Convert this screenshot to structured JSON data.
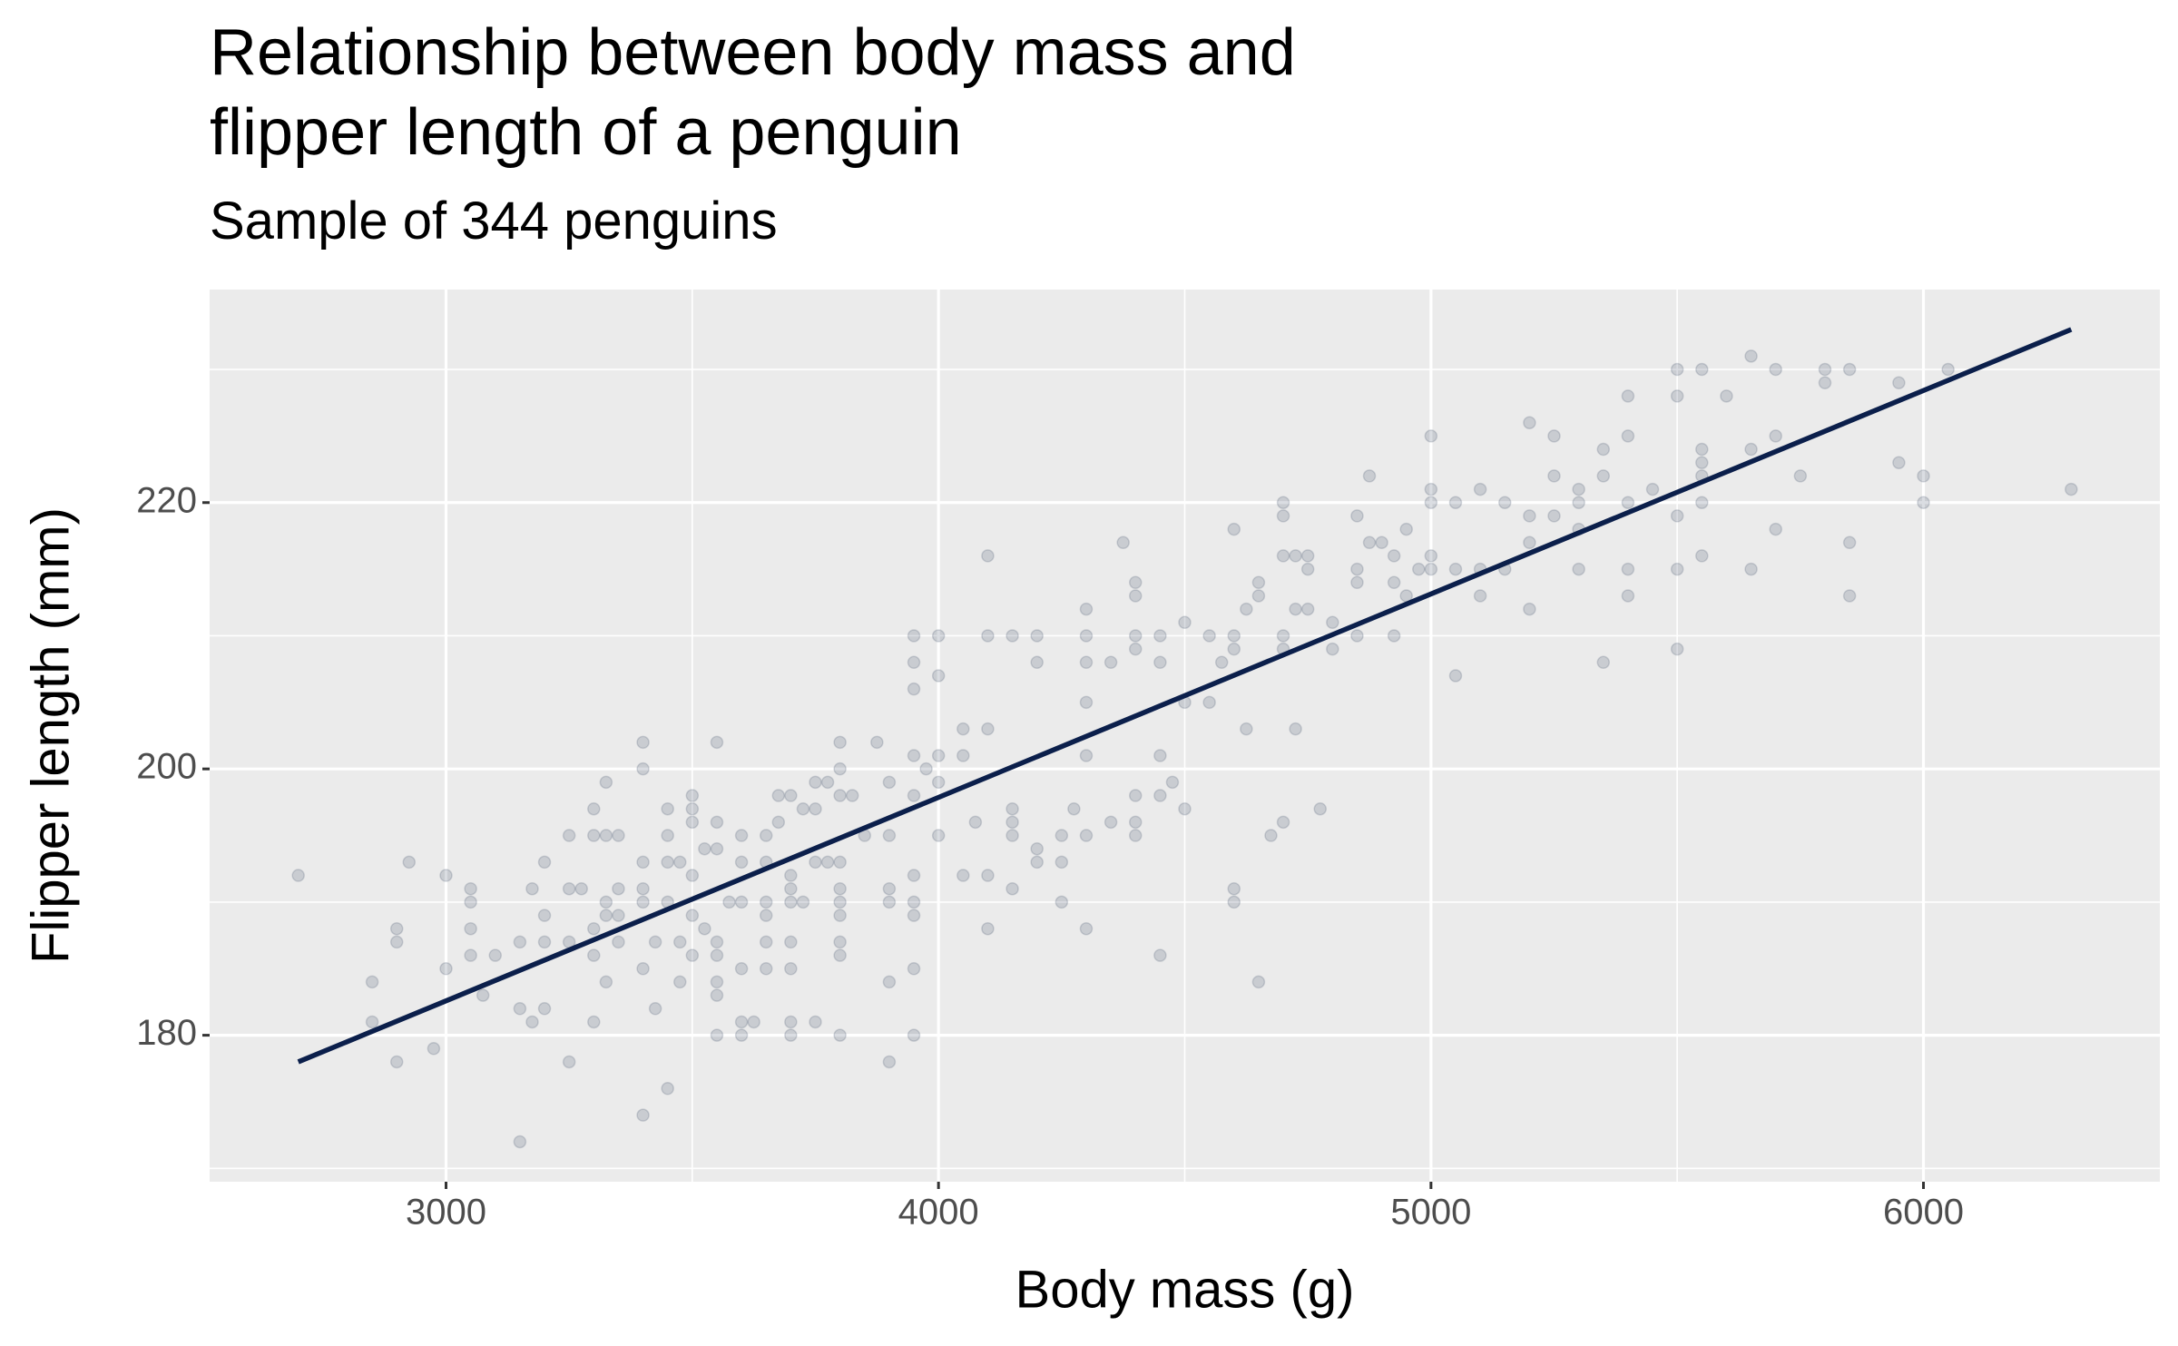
{
  "chart_data": {
    "type": "scatter",
    "title": "Relationship between body mass and\nflipper length of a penguin",
    "subtitle": "Sample of 344 penguins",
    "x_label": "Body mass (g)",
    "y_label": "Flipper length (mm)",
    "xlim": [
      2520,
      6480
    ],
    "ylim": [
      169,
      236
    ],
    "xticks": [
      3000,
      4000,
      5000,
      6000
    ],
    "yticks": [
      180,
      200,
      220
    ],
    "x_minor_grid": [
      3500,
      4500,
      5500
    ],
    "y_minor_grid": [
      170,
      190,
      210,
      230
    ],
    "grid": true,
    "point_color": "#1b2a4a",
    "point_opacity": 0.16,
    "line_color": "#0b1f4b",
    "fit": {
      "x": [
        2700,
        6300
      ],
      "y": [
        178,
        233
      ]
    },
    "x": [
      2700,
      2850,
      2850,
      2900,
      2900,
      2900,
      2925,
      2975,
      3000,
      3000,
      3050,
      3050,
      3050,
      3050,
      3075,
      3100,
      3150,
      3150,
      3150,
      3175,
      3175,
      3200,
      3200,
      3200,
      3200,
      3250,
      3250,
      3250,
      3250,
      3275,
      3300,
      3300,
      3300,
      3300,
      3300,
      3325,
      3325,
      3325,
      3325,
      3325,
      3350,
      3350,
      3350,
      3350,
      3400,
      3400,
      3400,
      3400,
      3400,
      3400,
      3400,
      3425,
      3425,
      3450,
      3450,
      3450,
      3450,
      3450,
      3475,
      3475,
      3475,
      3500,
      3500,
      3500,
      3500,
      3500,
      3500,
      3525,
      3525,
      3550,
      3550,
      3550,
      3550,
      3550,
      3550,
      3550,
      3550,
      3575,
      3600,
      3600,
      3600,
      3600,
      3600,
      3600,
      3625,
      3650,
      3650,
      3650,
      3650,
      3650,
      3650,
      3675,
      3675,
      3700,
      3700,
      3700,
      3700,
      3700,
      3700,
      3700,
      3700,
      3725,
      3725,
      3750,
      3750,
      3750,
      3750,
      3775,
      3775,
      3800,
      3800,
      3800,
      3800,
      3800,
      3800,
      3800,
      3800,
      3800,
      3800,
      3825,
      3850,
      3875,
      3900,
      3900,
      3900,
      3900,
      3900,
      3900,
      3950,
      3950,
      3950,
      3950,
      3950,
      3950,
      3950,
      3950,
      3950,
      3950,
      3975,
      4000,
      4000,
      4000,
      4000,
      4000,
      4050,
      4050,
      4050,
      4075,
      4100,
      4100,
      4100,
      4100,
      4100,
      4150,
      4150,
      4150,
      4150,
      4150,
      4200,
      4200,
      4200,
      4200,
      4250,
      4250,
      4250,
      4275,
      4300,
      4300,
      4300,
      4300,
      4300,
      4300,
      4300,
      4350,
      4350,
      4375,
      4400,
      4400,
      4400,
      4400,
      4400,
      4400,
      4400,
      4450,
      4450,
      4450,
      4450,
      4450,
      4475,
      4500,
      4500,
      4500,
      4550,
      4550,
      4575,
      4600,
      4600,
      4600,
      4600,
      4600,
      4625,
      4625,
      4650,
      4650,
      4650,
      4675,
      4700,
      4700,
      4700,
      4700,
      4700,
      4700,
      4725,
      4725,
      4725,
      4750,
      4750,
      4750,
      4775,
      4800,
      4800,
      4850,
      4850,
      4850,
      4850,
      4875,
      4875,
      4900,
      4925,
      4925,
      4925,
      4950,
      4950,
      4975,
      5000,
      5000,
      5000,
      5000,
      5000,
      5050,
      5050,
      5050,
      5100,
      5100,
      5100,
      5150,
      5150,
      5200,
      5200,
      5200,
      5200,
      5250,
      5250,
      5250,
      5300,
      5300,
      5300,
      5300,
      5350,
      5350,
      5350,
      5400,
      5400,
      5400,
      5400,
      5400,
      5450,
      5500,
      5500,
      5500,
      5500,
      5500,
      5550,
      5550,
      5550,
      5550,
      5550,
      5550,
      5600,
      5650,
      5650,
      5650,
      5700,
      5700,
      5700,
      5750,
      5800,
      5800,
      5850,
      5850,
      5850,
      5950,
      5950,
      6000,
      6000,
      6050,
      6300
    ],
    "y": [
      192,
      184,
      181,
      188,
      187,
      178,
      193,
      179,
      192,
      185,
      191,
      190,
      188,
      186,
      183,
      186,
      187,
      182,
      172,
      191,
      181,
      193,
      189,
      187,
      182,
      195,
      191,
      187,
      178,
      191,
      197,
      195,
      188,
      186,
      181,
      199,
      195,
      190,
      189,
      184,
      195,
      191,
      189,
      187,
      202,
      200,
      193,
      191,
      190,
      185,
      174,
      187,
      182,
      197,
      195,
      193,
      190,
      176,
      193,
      187,
      184,
      198,
      197,
      196,
      192,
      189,
      186,
      194,
      188,
      202,
      196,
      194,
      187,
      186,
      184,
      183,
      180,
      190,
      195,
      193,
      190,
      185,
      181,
      180,
      181,
      195,
      193,
      190,
      189,
      187,
      185,
      198,
      196,
      198,
      192,
      191,
      190,
      187,
      185,
      181,
      180,
      197,
      190,
      199,
      197,
      193,
      181,
      199,
      193,
      202,
      200,
      198,
      193,
      191,
      190,
      189,
      187,
      186,
      180,
      198,
      195,
      202,
      199,
      195,
      191,
      190,
      184,
      178,
      210,
      208,
      206,
      201,
      198,
      192,
      190,
      189,
      185,
      180,
      200,
      210,
      207,
      201,
      199,
      195,
      203,
      201,
      192,
      196,
      216,
      210,
      203,
      192,
      188,
      210,
      197,
      196,
      195,
      191,
      210,
      208,
      194,
      193,
      195,
      193,
      190,
      197,
      212,
      210,
      208,
      205,
      201,
      195,
      188,
      208,
      196,
      217,
      214,
      213,
      210,
      209,
      198,
      196,
      195,
      210,
      208,
      201,
      198,
      186,
      199,
      211,
      205,
      197,
      210,
      205,
      208,
      218,
      210,
      209,
      191,
      190,
      212,
      203,
      214,
      213,
      184,
      195,
      220,
      219,
      216,
      210,
      209,
      196,
      216,
      212,
      203,
      216,
      215,
      212,
      197,
      211,
      209,
      219,
      215,
      214,
      210,
      222,
      217,
      217,
      216,
      214,
      210,
      218,
      213,
      215,
      225,
      221,
      220,
      216,
      215,
      220,
      215,
      207,
      221,
      215,
      213,
      220,
      215,
      226,
      219,
      217,
      212,
      225,
      222,
      219,
      221,
      220,
      218,
      215,
      224,
      222,
      208,
      228,
      225,
      220,
      215,
      213,
      221,
      230,
      228,
      219,
      215,
      209,
      230,
      224,
      223,
      222,
      220,
      216,
      228,
      231,
      224,
      215,
      230,
      225,
      218,
      222,
      230,
      229,
      230,
      217,
      213,
      229,
      223,
      222,
      220,
      230,
      221
    ]
  }
}
